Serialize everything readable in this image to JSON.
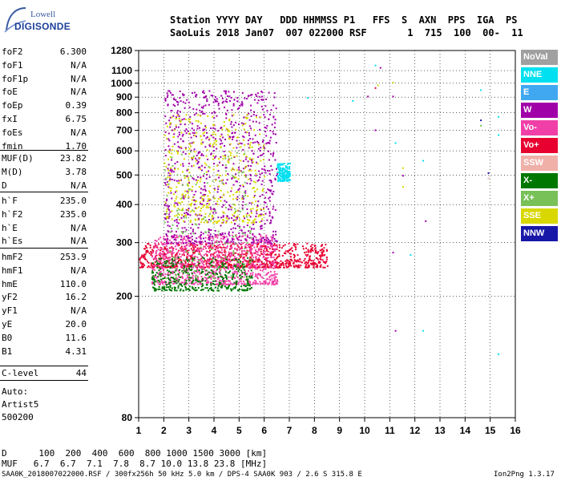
{
  "logo": {
    "line1": "Lowell",
    "line2": "DIGISONDE"
  },
  "header": {
    "row1": "Station YYYY DAY   DDD HHMMSS P1   FFS  S  AXN  PPS  IGA  PS",
    "row2": "SaoLuis 2018 Jan07  007 022000 RSF       1  715  100  00-  11"
  },
  "params": {
    "group1": [
      {
        "name": "foF2",
        "value": "6.300"
      },
      {
        "name": "foF1",
        "value": "N/A"
      },
      {
        "name": "foF1p",
        "value": "N/A"
      },
      {
        "name": "foE",
        "value": "N/A"
      },
      {
        "name": "foEp",
        "value": "0.39"
      },
      {
        "name": "fxI",
        "value": "6.75"
      },
      {
        "name": "foEs",
        "value": "N/A"
      },
      {
        "name": "fmin",
        "value": "1.70"
      }
    ],
    "group2": [
      {
        "name": "MUF(D)",
        "value": "23.82"
      },
      {
        "name": "M(D)",
        "value": "3.78"
      },
      {
        "name": "D",
        "value": "N/A"
      }
    ],
    "group3": [
      {
        "name": "h`F",
        "value": "235.0"
      },
      {
        "name": "h`F2",
        "value": "235.0"
      },
      {
        "name": "h`E",
        "value": "N/A"
      },
      {
        "name": "h`Es",
        "value": "N/A"
      }
    ],
    "group4": [
      {
        "name": "hmF2",
        "value": "253.9"
      },
      {
        "name": "hmF1",
        "value": "N/A"
      },
      {
        "name": "hmE",
        "value": "110.0"
      },
      {
        "name": "yF2",
        "value": "16.2"
      },
      {
        "name": "yF1",
        "value": "N/A"
      },
      {
        "name": "yE",
        "value": "20.0"
      },
      {
        "name": "B0",
        "value": "11.6"
      },
      {
        "name": "B1",
        "value": "4.31"
      }
    ],
    "clevel": {
      "name": "C-level",
      "value": "44"
    },
    "auto": [
      "Auto:",
      "Artist5",
      "500200"
    ]
  },
  "legend": [
    {
      "label": "NoVal",
      "color": "#a0a0a0"
    },
    {
      "label": "NNE",
      "color": "#00e0f0"
    },
    {
      "label": "E",
      "color": "#40a8f0"
    },
    {
      "label": "W",
      "color": "#a000a8"
    },
    {
      "label": "Vo-",
      "color": "#f040a8"
    },
    {
      "label": "Vo+",
      "color": "#e80030"
    },
    {
      "label": "SSW",
      "color": "#f0b0a8"
    },
    {
      "label": "X-",
      "color": "#007800"
    },
    {
      "label": "X+",
      "color": "#78c058"
    },
    {
      "label": "SSE",
      "color": "#d8d800"
    },
    {
      "label": "NNW",
      "color": "#1818a8"
    }
  ],
  "chart_data": {
    "type": "scatter",
    "title": "",
    "xlabel": "",
    "ylabel": "",
    "xlim": [
      1,
      16
    ],
    "x_ticks": [
      1,
      2,
      3,
      4,
      5,
      6,
      7,
      8,
      9,
      10,
      11,
      12,
      13,
      14,
      15,
      16
    ],
    "y_scale": "log",
    "ylim": [
      80,
      1280
    ],
    "y_ticks": [
      80,
      200,
      300,
      400,
      500,
      600,
      700,
      800,
      900,
      1000,
      1100,
      1280
    ],
    "grid": true,
    "clusters": [
      {
        "series": "Vo+",
        "x": [
          1.0,
          8.5
        ],
        "y": [
          250,
          300
        ],
        "density": "high"
      },
      {
        "series": "Vo-",
        "x": [
          1.5,
          6.5
        ],
        "y": [
          220,
          320
        ],
        "density": "high"
      },
      {
        "series": "X-",
        "x": [
          1.5,
          5.5
        ],
        "y": [
          210,
          270
        ],
        "density": "medium"
      },
      {
        "series": "W",
        "x": [
          2.0,
          6.5
        ],
        "y": [
          300,
          950
        ],
        "density": "high"
      },
      {
        "series": "SSE",
        "x": [
          2.0,
          6.0
        ],
        "y": [
          350,
          800
        ],
        "density": "medium"
      },
      {
        "series": "X+",
        "x": [
          2.0,
          5.5
        ],
        "y": [
          230,
          600
        ],
        "density": "low"
      },
      {
        "series": "NNE",
        "x": [
          6.5,
          7.0
        ],
        "y": [
          480,
          550
        ],
        "density": "low"
      }
    ],
    "isolated_points": [
      {
        "series": "NNE",
        "x": 10.4,
        "y": 1150
      },
      {
        "series": "W",
        "x": 10.6,
        "y": 1130
      },
      {
        "series": "W",
        "x": 10.1,
        "y": 910
      },
      {
        "series": "Vo+",
        "x": 10.4,
        "y": 970
      },
      {
        "series": "SSE",
        "x": 10.5,
        "y": 990
      },
      {
        "series": "NNE",
        "x": 9.5,
        "y": 880
      },
      {
        "series": "NNE",
        "x": 7.7,
        "y": 900
      },
      {
        "series": "W",
        "x": 10.4,
        "y": 705
      },
      {
        "series": "W",
        "x": 11.1,
        "y": 910
      },
      {
        "series": "SSE",
        "x": 11.1,
        "y": 1010
      },
      {
        "series": "NNE",
        "x": 11.2,
        "y": 640
      },
      {
        "series": "SSE",
        "x": 11.5,
        "y": 530
      },
      {
        "series": "W",
        "x": 11.5,
        "y": 500
      },
      {
        "series": "SSE",
        "x": 11.5,
        "y": 460
      },
      {
        "series": "NNE",
        "x": 12.3,
        "y": 560
      },
      {
        "series": "W",
        "x": 12.4,
        "y": 355
      },
      {
        "series": "W",
        "x": 11.1,
        "y": 280
      },
      {
        "series": "NNE",
        "x": 11.8,
        "y": 275
      },
      {
        "series": "W",
        "x": 11.2,
        "y": 155
      },
      {
        "series": "NNE",
        "x": 12.3,
        "y": 155
      },
      {
        "series": "NNE",
        "x": 14.6,
        "y": 955
      },
      {
        "series": "NNW",
        "x": 14.6,
        "y": 760
      },
      {
        "series": "X+",
        "x": 14.6,
        "y": 730
      },
      {
        "series": "NNE",
        "x": 15.3,
        "y": 780
      },
      {
        "series": "NNE",
        "x": 15.3,
        "y": 680
      },
      {
        "series": "NNW",
        "x": 14.9,
        "y": 510
      },
      {
        "series": "SSW",
        "x": 14.9,
        "y": 490
      },
      {
        "series": "NNE",
        "x": 15.3,
        "y": 130
      }
    ]
  },
  "bottom": {
    "row1": "D      100  200  400  600  800 1000 1500 3000 [km]",
    "row2": "MUF   6.7  6.7  7.1  7.8  8.7 10.0 13.8 23.8 [MHz]"
  },
  "footer": {
    "left": "SAA0K_2018007022000.RSF / 300fx256h 50 kHz 5.0 km / DPS-4 SAA0K 903 / 2.6 S 315.8 E",
    "right": "Ion2Png 1.3.17"
  }
}
